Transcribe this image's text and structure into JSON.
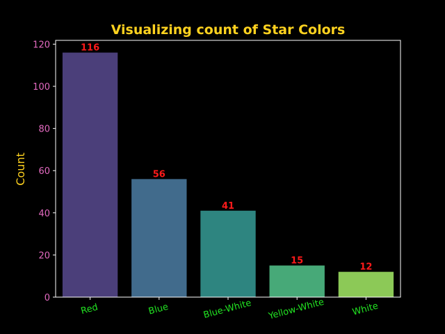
{
  "chart_data": {
    "type": "bar",
    "title": "Visualizing count of Star Colors",
    "xlabel": "",
    "ylabel": "Count",
    "categories": [
      "Red",
      "Blue",
      "Blue-White",
      "Yellow-White",
      "White"
    ],
    "values": [
      116,
      56,
      41,
      15,
      12
    ],
    "ylim": [
      0,
      121.8
    ],
    "yticks": [
      0,
      20,
      40,
      60,
      80,
      100,
      120
    ],
    "grid": false,
    "legend": "none",
    "colors": {
      "background": "#000000",
      "title": "#FFD21F",
      "ylabel": "#FFD21F",
      "ytick_labels": "#E36AC0",
      "xtick_labels": "#22E322",
      "data_labels": "#FF1A1A",
      "axes": "#FFFFFF",
      "bars": [
        "#4B3F7A",
        "#416B8C",
        "#2E8580",
        "#47A978",
        "#8CC957"
      ]
    }
  }
}
